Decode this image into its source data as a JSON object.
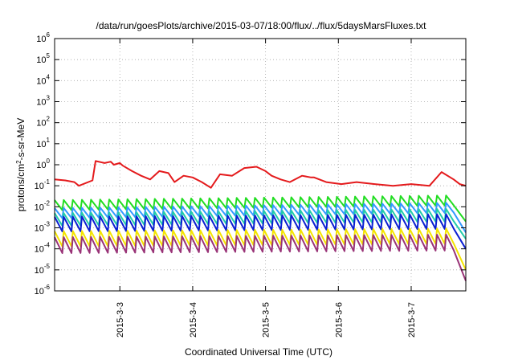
{
  "chart_data": {
    "type": "line",
    "title": "/data/run/goesPlots/archive/2015-03-07/18:00/flux/../flux/5daysMarsFluxes.txt",
    "xlabel": "Coordinated Universal Time (UTC)",
    "ylabel_parts": [
      "protons/cm",
      "2",
      "-s-sr-MeV"
    ],
    "y_scale": "log",
    "ylim": [
      1e-06,
      1000000.0
    ],
    "y_ticks": [
      {
        "base": "10",
        "exp": "-6",
        "value": 1e-06
      },
      {
        "base": "10",
        "exp": "-5",
        "value": 1e-05
      },
      {
        "base": "10",
        "exp": "-4",
        "value": 0.0001
      },
      {
        "base": "10",
        "exp": "-3",
        "value": 0.001
      },
      {
        "base": "10",
        "exp": "-2",
        "value": 0.01
      },
      {
        "base": "10",
        "exp": "-1",
        "value": 0.1
      },
      {
        "base": "10",
        "exp": "0",
        "value": 1
      },
      {
        "base": "10",
        "exp": "1",
        "value": 10
      },
      {
        "base": "10",
        "exp": "2",
        "value": 100
      },
      {
        "base": "10",
        "exp": "3",
        "value": 1000
      },
      {
        "base": "10",
        "exp": "4",
        "value": 10000
      },
      {
        "base": "10",
        "exp": "5",
        "value": 100000
      },
      {
        "base": "10",
        "exp": "6",
        "value": 1000000
      }
    ],
    "xlim": [
      "2015-03-02 02:30",
      "2015-03-07 18:00"
    ],
    "x_ticks": [
      "2015-3-3",
      "2015-3-4",
      "2015-3-5",
      "2015-3-6",
      "2015-3-7"
    ],
    "x_tick_dates": [
      "2015-03-03",
      "2015-03-04",
      "2015-03-05",
      "2015-03-06",
      "2015-03-07"
    ],
    "grid": true,
    "legend": "none",
    "series": [
      {
        "color": "#e41a1c",
        "x": [
          "2015-03-02 02:30",
          "2015-03-02 06:00",
          "2015-03-02 09:00",
          "2015-03-02 10:30",
          "2015-03-02 15:00",
          "2015-03-02 16:00",
          "2015-03-02 19:00",
          "2015-03-02 21:00",
          "2015-03-02 22:00",
          "2015-03-03 00:00",
          "2015-03-03 01:00",
          "2015-03-03 04:00",
          "2015-03-03 07:00",
          "2015-03-03 10:00",
          "2015-03-03 13:00",
          "2015-03-03 16:00",
          "2015-03-03 18:00",
          "2015-03-03 21:00",
          "2015-03-04 00:00",
          "2015-03-04 03:00",
          "2015-03-04 06:00",
          "2015-03-04 09:00",
          "2015-03-04 13:00",
          "2015-03-04 17:00",
          "2015-03-04 21:00",
          "2015-03-05 00:00",
          "2015-03-05 02:00",
          "2015-03-05 05:00",
          "2015-03-05 08:00",
          "2015-03-05 12:00",
          "2015-03-05 15:00",
          "2015-03-05 16:00",
          "2015-03-05 20:00",
          "2015-03-06 01:00",
          "2015-03-06 06:00",
          "2015-03-06 12:00",
          "2015-03-06 18:00",
          "2015-03-07 00:00",
          "2015-03-07 06:00",
          "2015-03-07 10:00",
          "2015-03-07 14:00",
          "2015-03-07 16:00",
          "2015-03-07 18:00"
        ],
        "values": [
          0.2,
          0.18,
          0.15,
          0.1,
          0.18,
          1.5,
          1.2,
          1.4,
          1.0,
          1.2,
          0.9,
          0.5,
          0.3,
          0.2,
          0.5,
          0.4,
          0.15,
          0.3,
          0.25,
          0.15,
          0.08,
          0.35,
          0.3,
          0.7,
          0.8,
          0.5,
          0.3,
          0.2,
          0.15,
          0.3,
          0.25,
          0.25,
          0.15,
          0.12,
          0.15,
          0.12,
          0.1,
          0.12,
          0.1,
          0.45,
          0.2,
          0.12,
          0.1
        ]
      },
      {
        "color": "#22dd22",
        "x": [
          "2015-03-02 02:30",
          "2015-03-07 12:00",
          "2015-03-07 18:00"
        ],
        "values": [
          0.012,
          0.02,
          0.002
        ],
        "pattern": {
          "peak": 0.03,
          "trough": 0.01
        }
      },
      {
        "color": "#3399ff",
        "x": [
          "2015-03-02 02:30",
          "2015-03-07 12:00",
          "2015-03-07 18:00"
        ],
        "values": [
          0.005,
          0.009,
          0.0006
        ],
        "pattern": {
          "peak": 0.012,
          "trough": 0.004
        }
      },
      {
        "color": "#22ccaa",
        "x": [
          "2015-03-02 02:30",
          "2015-03-07 12:00",
          "2015-03-07 18:00"
        ],
        "values": [
          0.0025,
          0.004,
          0.0003
        ],
        "pattern": {
          "peak": 0.006,
          "trough": 0.0015
        }
      },
      {
        "color": "#0b1fd1",
        "x": [
          "2015-03-02 02:30",
          "2015-03-07 12:00",
          "2015-03-07 18:00"
        ],
        "values": [
          0.0015,
          0.002,
          0.0001
        ],
        "pattern": {
          "peak": 0.004,
          "trough": 0.0008
        }
      },
      {
        "color": "#f4e400",
        "x": [
          "2015-03-02 02:30",
          "2015-03-07 12:00",
          "2015-03-07 18:00"
        ],
        "values": [
          0.0003,
          0.0004,
          1e-05
        ],
        "pattern": {
          "peak": 0.0008,
          "trough": 0.00015
        }
      },
      {
        "color": "#993377",
        "x": [
          "2015-03-02 02:30",
          "2015-03-07 12:00",
          "2015-03-07 18:00"
        ],
        "values": [
          0.00015,
          0.0002,
          3e-06
        ],
        "pattern": {
          "peak": 0.0004,
          "trough": 7e-05
        }
      }
    ]
  }
}
